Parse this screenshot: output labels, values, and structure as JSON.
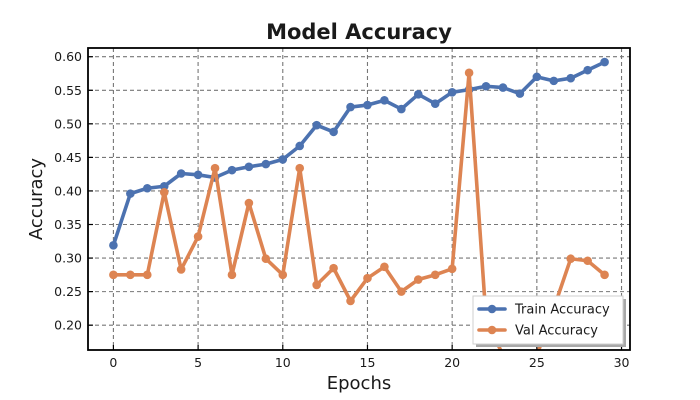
{
  "chart_data": {
    "type": "line",
    "title": "Model Accuracy",
    "xlabel": "Epochs",
    "ylabel": "Accuracy",
    "xlim": [
      -1.5,
      30.5
    ],
    "ylim": [
      0.163,
      0.613
    ],
    "xticks": [
      0,
      5,
      10,
      15,
      20,
      25,
      30
    ],
    "yticks": [
      0.2,
      0.25,
      0.3,
      0.35,
      0.4,
      0.45,
      0.5,
      0.55,
      0.6
    ],
    "ytick_labels": [
      "0.20",
      "0.25",
      "0.30",
      "0.35",
      "0.40",
      "0.45",
      "0.50",
      "0.55",
      "0.60"
    ],
    "grid": true,
    "legend_position": "lower-right",
    "x": [
      0,
      1,
      2,
      3,
      4,
      5,
      6,
      7,
      8,
      9,
      10,
      11,
      12,
      13,
      14,
      15,
      16,
      17,
      18,
      19,
      20,
      21,
      22,
      23,
      24,
      25,
      26,
      27,
      28,
      29
    ],
    "series": [
      {
        "name": "Train Accuracy",
        "color": "#4c72b0",
        "values": [
          0.319,
          0.396,
          0.404,
          0.407,
          0.426,
          0.424,
          0.42,
          0.431,
          0.436,
          0.44,
          0.447,
          0.467,
          0.498,
          0.488,
          0.525,
          0.528,
          0.535,
          0.522,
          0.544,
          0.53,
          0.547,
          0.551,
          0.556,
          0.554,
          0.545,
          0.57,
          0.564,
          0.568,
          0.58,
          0.592
        ]
      },
      {
        "name": "Val Accuracy",
        "color": "#dd8452",
        "values": [
          0.275,
          0.275,
          0.275,
          0.398,
          0.283,
          0.332,
          0.434,
          0.275,
          0.382,
          0.299,
          0.275,
          0.434,
          0.26,
          0.285,
          0.236,
          0.27,
          0.287,
          0.25,
          0.268,
          0.275,
          0.284,
          0.576,
          0.21,
          0.155,
          0.155,
          0.155,
          0.225,
          0.299,
          0.296,
          0.275
        ]
      }
    ]
  }
}
